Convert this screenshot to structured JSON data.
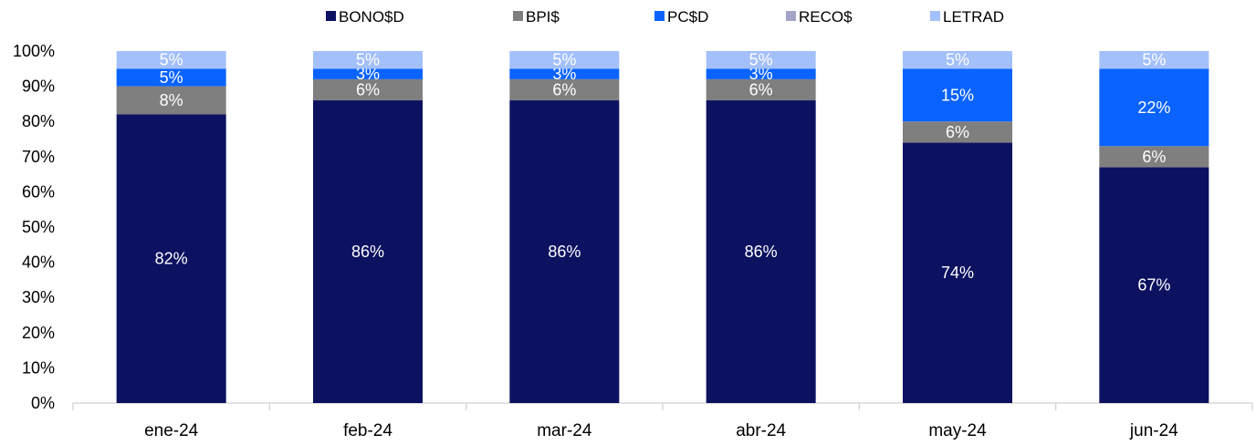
{
  "chart_data": {
    "type": "bar",
    "stacked": true,
    "categories": [
      "ene-24",
      "feb-24",
      "mar-24",
      "abr-24",
      "may-24",
      "jun-24"
    ],
    "series": [
      {
        "name": "BONO$D",
        "color": "#0c1160",
        "values": [
          82,
          86,
          86,
          86,
          74,
          67
        ],
        "labels": [
          "82%",
          "86%",
          "86%",
          "86%",
          "74%",
          "67%"
        ]
      },
      {
        "name": "BPI$",
        "color": "#7f7f7f",
        "values": [
          8,
          6,
          6,
          6,
          6,
          6
        ],
        "labels": [
          "8%",
          "6%",
          "6%",
          "6%",
          "6%",
          "6%"
        ]
      },
      {
        "name": "PC$D",
        "color": "#0a63ff",
        "values": [
          5,
          3,
          3,
          3,
          15,
          22
        ],
        "labels": [
          "5%",
          "3%",
          "3%",
          "3%",
          "15%",
          "22%"
        ]
      },
      {
        "name": "RECO$",
        "color": "#a4a4c8",
        "values": [
          0,
          0,
          0,
          0,
          0,
          0
        ],
        "labels": [
          "",
          "",
          "",
          "",
          "",
          ""
        ]
      },
      {
        "name": "LETRAD",
        "color": "#a3c0fa",
        "values": [
          5,
          5,
          5,
          5,
          5,
          5
        ],
        "labels": [
          "5%",
          "5%",
          "5%",
          "5%",
          "5%",
          "5%"
        ]
      }
    ],
    "y_ticks": [
      "0%",
      "10%",
      "20%",
      "30%",
      "40%",
      "50%",
      "60%",
      "70%",
      "80%",
      "90%",
      "100%"
    ],
    "ylim": [
      0,
      100
    ],
    "legend_position": "top",
    "grid": false,
    "title": "",
    "xlabel": "",
    "ylabel": ""
  }
}
